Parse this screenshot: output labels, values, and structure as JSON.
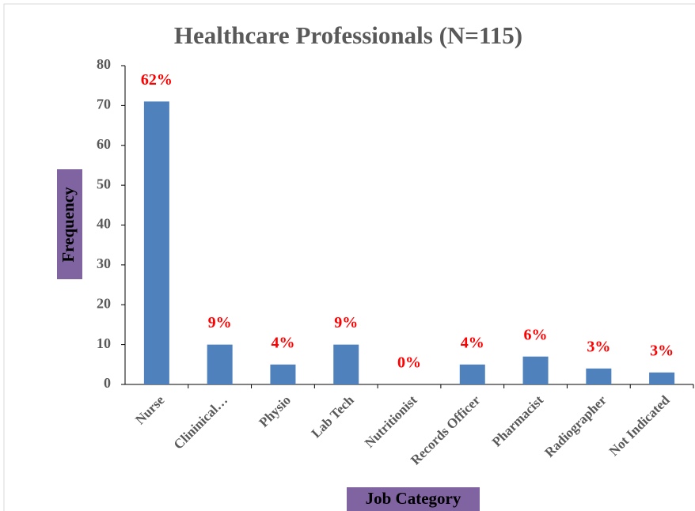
{
  "chart_data": {
    "type": "bar",
    "title": "Healthcare Professionals (N=115)",
    "x_label": "Job Category",
    "y_label": "Frequency",
    "categories": [
      "Nurse",
      "Clininical…",
      "Physio",
      "Lab Tech",
      "Nutritionist",
      "Records Officer",
      "Pharmacist",
      "Radiographer",
      "Not Indicated"
    ],
    "values": [
      71,
      10,
      5,
      10,
      0,
      5,
      7,
      4,
      3
    ],
    "value_labels": [
      "62%",
      "9%",
      "4%",
      "9%",
      "0%",
      "4%",
      "6%",
      "3%",
      "3%"
    ],
    "color": "#4f81bd",
    "ylim": [
      0,
      80
    ],
    "yticks": [
      0,
      10,
      20,
      30,
      40,
      50,
      60,
      70,
      80
    ],
    "grid": false
  }
}
